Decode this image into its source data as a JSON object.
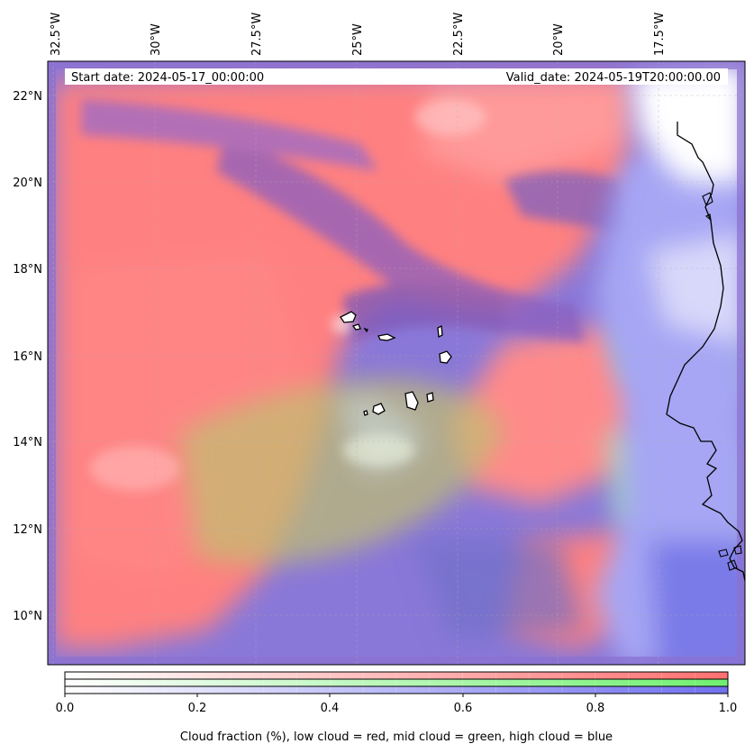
{
  "map": {
    "header": {
      "start_date": "Start date: 2024-05-17_00:00:00",
      "valid_date": "Valid_date: 2024-05-19T20:00:00.00"
    },
    "lon_labels": [
      "32.5°W",
      "30°W",
      "27.5°W",
      "25°W",
      "22.5°W",
      "20°W",
      "17.5°W"
    ],
    "lat_labels": [
      "22°N",
      "20°N",
      "18°N",
      "16°N",
      "14°N",
      "12°N",
      "10°N"
    ],
    "layers": [
      {
        "name": "low cloud",
        "color": "#ff7f7f"
      },
      {
        "name": "mid cloud",
        "color": "#7fef7f"
      },
      {
        "name": "high cloud",
        "color": "#7f7fef"
      }
    ]
  },
  "colorbar": {
    "ticks": [
      "0.0",
      "0.2",
      "0.4",
      "0.6",
      "0.8",
      "1.0"
    ],
    "label": "Cloud fraction (%), low cloud = red, mid cloud = green, high cloud = blue",
    "low_color": "#ff7070",
    "mid_color": "#70f070",
    "high_color": "#7070f0"
  }
}
